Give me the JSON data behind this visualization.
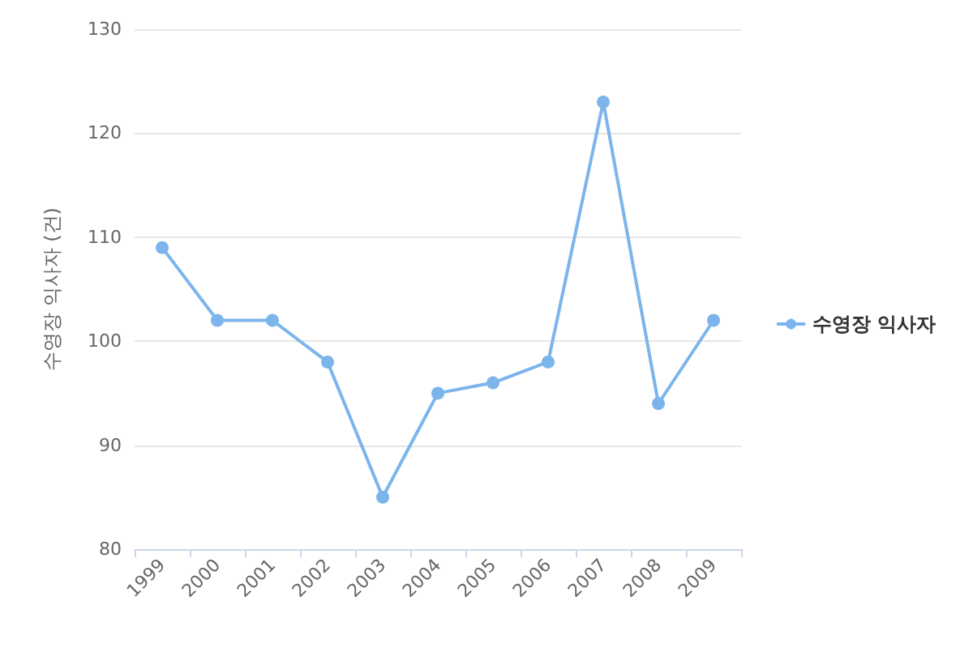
{
  "chart_data": {
    "type": "line",
    "ylabel": "수영장 익사자 (건)",
    "categories": [
      "1999",
      "2000",
      "2001",
      "2002",
      "2003",
      "2004",
      "2005",
      "2006",
      "2007",
      "2008",
      "2009"
    ],
    "series": [
      {
        "name": "수영장 익사자",
        "color": "#7cb5ec",
        "values": [
          109,
          102,
          102,
          98,
          85,
          95,
          96,
          98,
          123,
          94,
          102
        ]
      }
    ],
    "ylim": [
      80,
      130
    ],
    "yticks": [
      80,
      90,
      100,
      110,
      120,
      130
    ],
    "grid": "y",
    "legend": "right",
    "marker": "circle",
    "line_style": "solid"
  }
}
